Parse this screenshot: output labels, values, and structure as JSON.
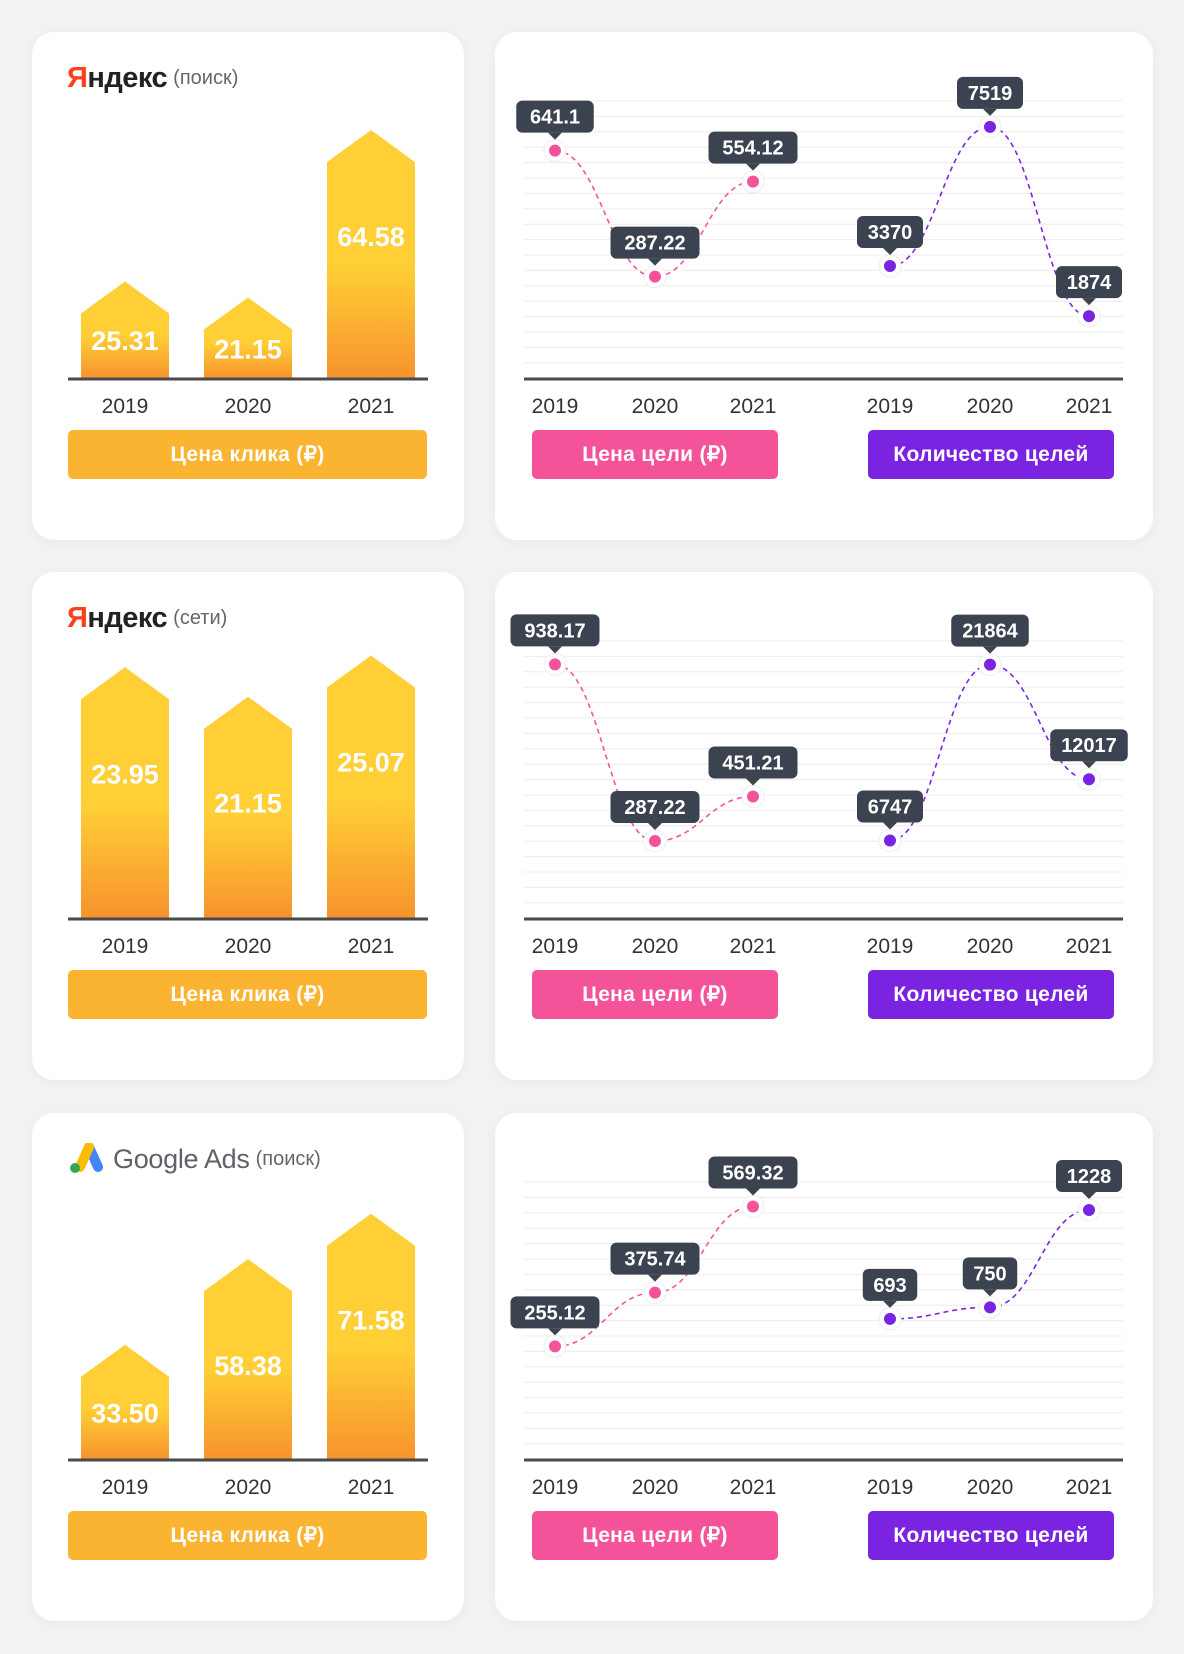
{
  "colors": {
    "bar_top": "#ffcf35",
    "bar_bottom": "#f7922e",
    "goal_price": "#f4539a",
    "goal_count": "#7a24e2",
    "click_button": "#fbb432",
    "label_bg": "#3c4350",
    "axis": "#4a4a4a",
    "grid": "#ececec"
  },
  "labels": {
    "click_price": "Цена клика (₽)",
    "goal_price": "Цена цели (₽)",
    "goal_count": "Количество целей"
  },
  "sections": [
    {
      "brand": {
        "type": "yandex",
        "first": "Я",
        "rest": "ндекс",
        "note": "(поиск)"
      },
      "icon": "yandex-logo"
    },
    {
      "brand": {
        "type": "yandex",
        "first": "Я",
        "rest": "ндекс",
        "note": "(сети)"
      },
      "icon": "yandex-logo"
    },
    {
      "brand": {
        "type": "google",
        "name": "Google Ads",
        "note": "(поиск)"
      },
      "icon": "google-ads-icon"
    }
  ],
  "chart_data": [
    {
      "type": "bar",
      "categories": [
        "2019",
        "2020",
        "2021"
      ],
      "values": [
        "25.31",
        "21.15",
        "64.58"
      ],
      "ylim": [
        0,
        75
      ]
    },
    {
      "type": "line",
      "categories": [
        "2019",
        "2020",
        "2021"
      ],
      "values": [
        "641.1",
        "287.22",
        "554.12"
      ],
      "color": "#f4539a",
      "ylim": [
        0,
        800
      ]
    },
    {
      "type": "line",
      "categories": [
        "2019",
        "2020",
        "2021"
      ],
      "values": [
        "3370",
        "7519",
        "1874"
      ],
      "color": "#7a24e2",
      "ylim": [
        0,
        8500
      ]
    },
    {
      "type": "bar",
      "categories": [
        "2019",
        "2020",
        "2021"
      ],
      "values": [
        "23.95",
        "21.15",
        "25.07"
      ],
      "ylim": [
        0,
        27.5
      ]
    },
    {
      "type": "line",
      "categories": [
        "2019",
        "2020",
        "2021"
      ],
      "values": [
        "938.17",
        "287.22",
        "451.21"
      ],
      "color": "#f4539a",
      "ylim": [
        0,
        1050
      ]
    },
    {
      "type": "line",
      "categories": [
        "2019",
        "2020",
        "2021"
      ],
      "values": [
        "6747",
        "21864",
        "12017"
      ],
      "color": "#7a24e2",
      "ylim": [
        0,
        24500
      ]
    },
    {
      "type": "bar",
      "categories": [
        "2019",
        "2020",
        "2021"
      ],
      "values": [
        "33.50",
        "58.38",
        "71.58"
      ],
      "ylim": [
        0,
        84
      ]
    },
    {
      "type": "line",
      "categories": [
        "2019",
        "2020",
        "2021"
      ],
      "values": [
        "255.12",
        "375.74",
        "569.32"
      ],
      "color": "#f4539a",
      "ylim": [
        0,
        640
      ]
    },
    {
      "type": "line",
      "categories": [
        "2019",
        "2020",
        "2021"
      ],
      "values": [
        "693",
        "750",
        "1228"
      ],
      "color": "#7a24e2",
      "ylim": [
        0,
        1400
      ]
    }
  ]
}
